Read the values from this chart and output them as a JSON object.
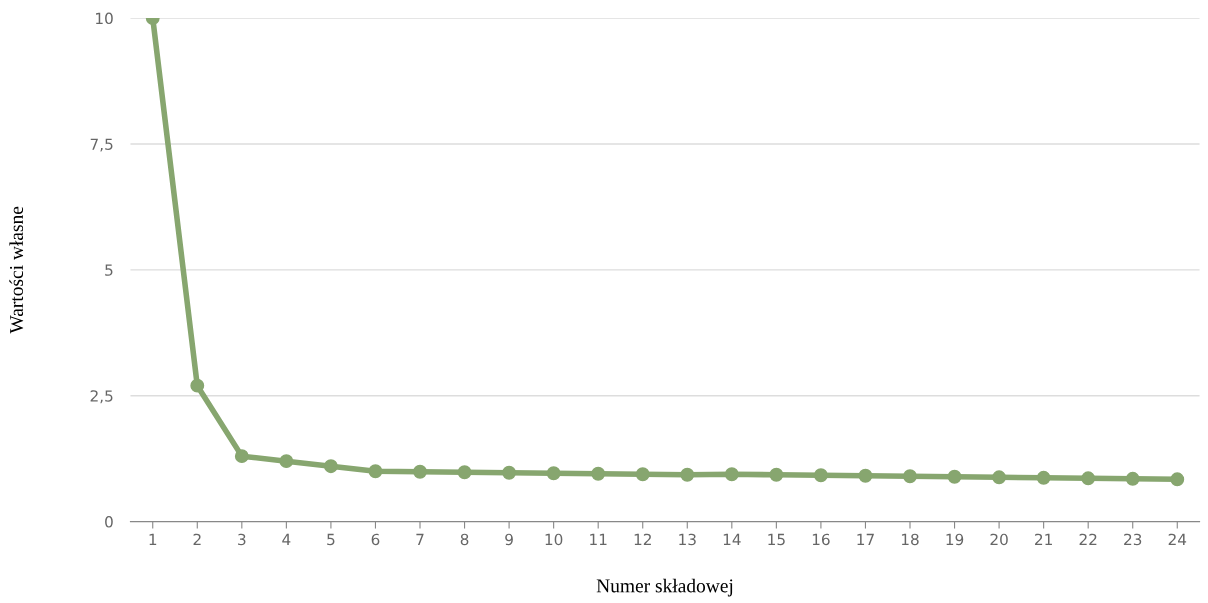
{
  "chart_data": {
    "type": "line",
    "xlabel": "Numer składowej",
    "ylabel": "Wartości własne",
    "categories": [
      "1",
      "2",
      "3",
      "4",
      "5",
      "6",
      "7",
      "8",
      "9",
      "10",
      "11",
      "12",
      "13",
      "14",
      "15",
      "16",
      "17",
      "18",
      "19",
      "20",
      "21",
      "22",
      "23",
      "24"
    ],
    "series": [
      {
        "color": "#87a66f",
        "values": [
          10,
          2.7,
          1.3,
          1.2,
          1.1,
          1.0,
          0.99,
          0.98,
          0.97,
          0.96,
          0.95,
          0.94,
          0.93,
          0.94,
          0.93,
          0.92,
          0.91,
          0.9,
          0.89,
          0.88,
          0.87,
          0.86,
          0.85,
          0.84
        ]
      }
    ],
    "ylim": [
      0,
      10
    ],
    "yticks": [
      0,
      {
        "value": 2.5,
        "label": "2,5"
      },
      5,
      {
        "value": 7.5,
        "label": "7,5"
      },
      10
    ],
    "grid": "y",
    "marker": "circle",
    "line_style": "solid"
  }
}
